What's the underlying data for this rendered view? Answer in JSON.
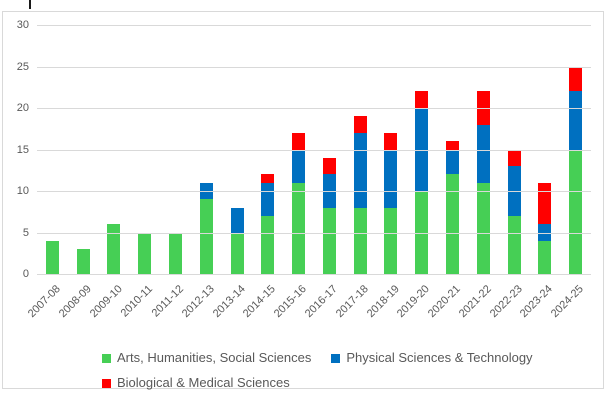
{
  "chart_data": {
    "type": "bar",
    "stacked": true,
    "title": "",
    "xlabel": "",
    "ylabel": "",
    "categories": [
      "2007-08",
      "2008-09",
      "2009-10",
      "2010-11",
      "2011-12",
      "2012-13",
      "2013-14",
      "2014-15",
      "2015-16",
      "2016-17",
      "2017-18",
      "2018-19",
      "2019-20",
      "2020-21",
      "2021-22",
      "2022-23",
      "2023-24",
      "2024-25"
    ],
    "series": [
      {
        "name": "Arts, Humanities, Social Sciences",
        "color": "#46CF55",
        "values": [
          4,
          3,
          6,
          5,
          5,
          9,
          5,
          7,
          11,
          8,
          8,
          8,
          10,
          12,
          11,
          7,
          4,
          15
        ]
      },
      {
        "name": "Physical Sciences & Technology",
        "color": "#0070C0",
        "values": [
          0,
          0,
          0,
          0,
          0,
          2,
          3,
          4,
          4,
          4,
          9,
          7,
          10,
          3,
          7,
          6,
          2,
          7
        ]
      },
      {
        "name": "Biological & Medical Sciences",
        "color": "#FF0000",
        "values": [
          0,
          0,
          0,
          0,
          0,
          0,
          0,
          1,
          2,
          2,
          2,
          2,
          2,
          1,
          4,
          2,
          5,
          3
        ]
      }
    ],
    "totals": [
      4,
      3,
      6,
      5,
      5,
      11,
      8,
      12,
      17,
      14,
      19,
      17,
      22,
      16,
      22,
      15,
      11,
      25
    ],
    "ylim": [
      0,
      30
    ],
    "yticks": [
      0,
      5,
      10,
      15,
      20,
      25,
      30
    ],
    "grid": true,
    "legend_position": "bottom",
    "colors": {
      "axis_text": "#595959",
      "gridline": "#D9D9D9",
      "frame_border": "#D9D9D9",
      "background": "#FFFFFF"
    }
  }
}
